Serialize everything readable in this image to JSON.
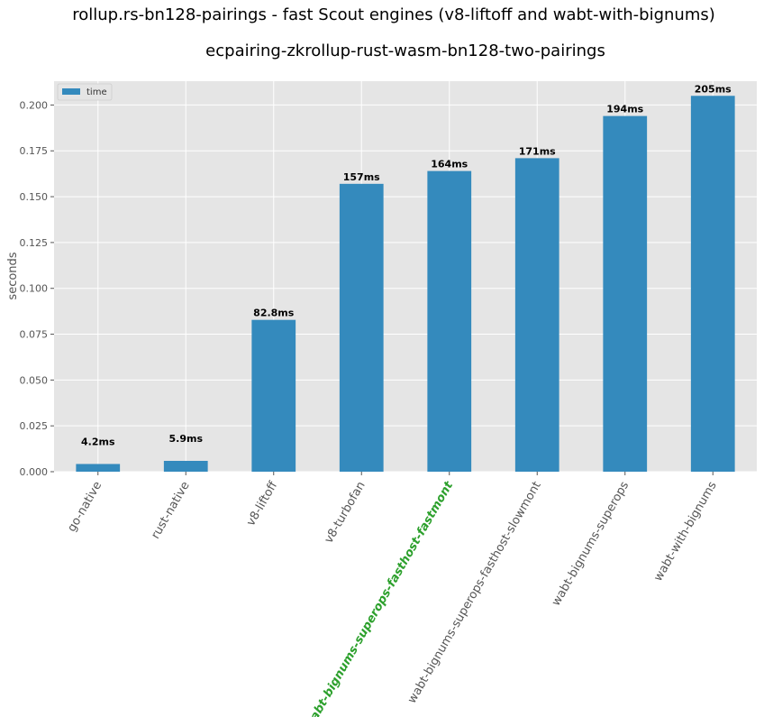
{
  "chart_data": {
    "type": "bar",
    "suptitle": "rollup.rs-bn128-pairings - fast Scout engines (v8-liftoff and wabt-with-bignums)",
    "title": "ecpairing-zkrollup-rust-wasm-bn128-two-pairings",
    "xlabel": "",
    "ylabel": "seconds",
    "ylim": [
      0,
      0.213
    ],
    "yticks": [
      "0.000",
      "0.025",
      "0.050",
      "0.075",
      "0.100",
      "0.125",
      "0.150",
      "0.175",
      "0.200"
    ],
    "grid": true,
    "legend_position": "top-left",
    "categories": [
      "go-native",
      "rust-native",
      "v8-liftoff",
      "v8-turbofan",
      "wabt-bignums-superops-fasthost-fastmont",
      "wabt-bignums-superops-fasthost-slowmont",
      "wabt-bignums-superops",
      "wabt-with-bignums"
    ],
    "highlighted_category": "wabt-bignums-superops-fasthost-fastmont",
    "series": [
      {
        "name": "time",
        "color": "#348abd",
        "values": [
          0.0042,
          0.0059,
          0.0828,
          0.157,
          0.164,
          0.171,
          0.194,
          0.205
        ],
        "labels": [
          "4.2ms",
          "5.9ms",
          "82.8ms",
          "157ms",
          "164ms",
          "171ms",
          "194ms",
          "205ms"
        ]
      }
    ],
    "colors": {
      "plot_background": "#e5e5e5",
      "grid": "#ffffff",
      "highlight_label": "#2ca02c",
      "tick_label": "#555555"
    }
  }
}
